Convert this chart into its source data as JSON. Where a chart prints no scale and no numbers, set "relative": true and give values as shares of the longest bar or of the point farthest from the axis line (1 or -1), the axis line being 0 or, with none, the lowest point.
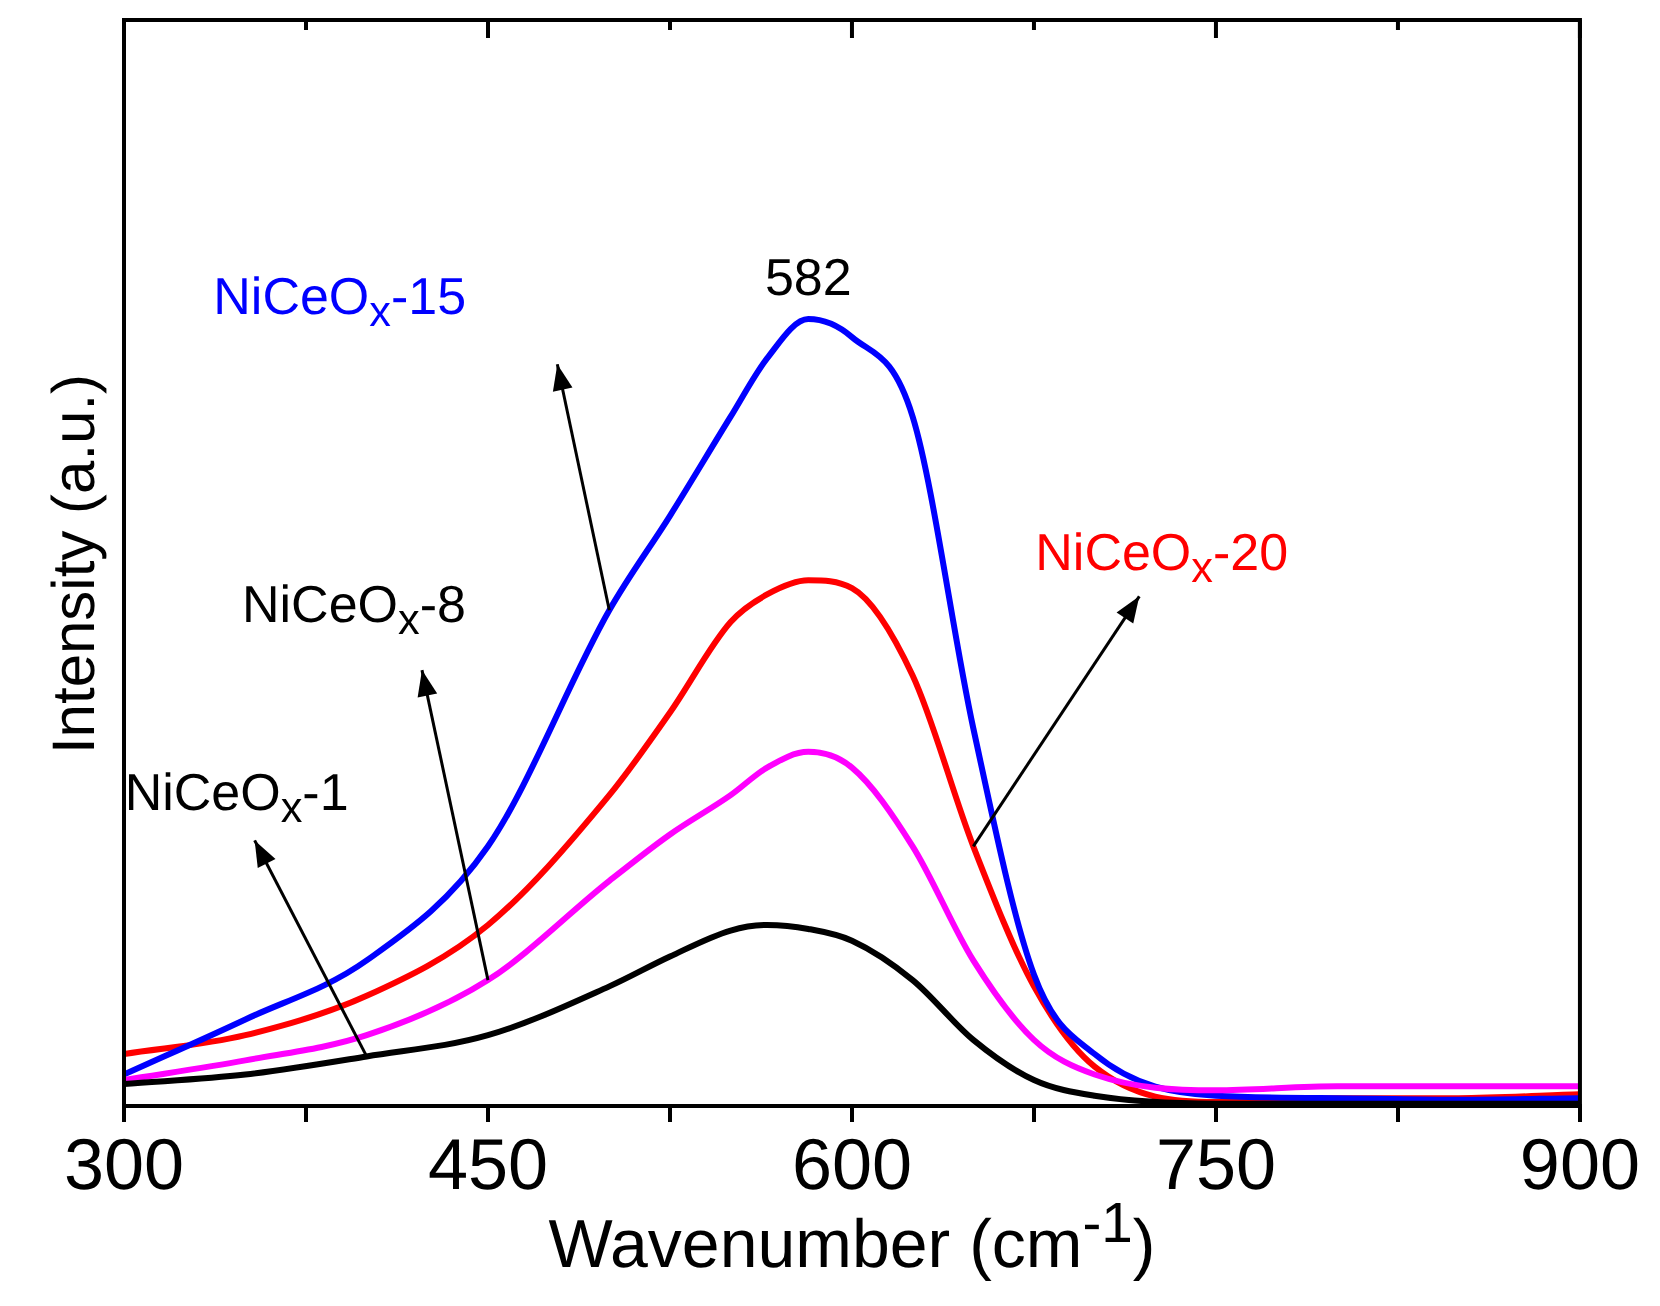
{
  "chart_data": {
    "type": "line",
    "xlabel": "Wavenumber (cm$^{-1}$)",
    "ylabel": "Intensity (a.u.)",
    "relative": true,
    "x": [
      300,
      350,
      400,
      450,
      500,
      525,
      550,
      565,
      582,
      600,
      625,
      650,
      675,
      700,
      750,
      800,
      850,
      900
    ],
    "xlim": [
      300,
      900
    ],
    "xticks": [
      300,
      {
        "value": 375,
        "label": null
      },
      450,
      {
        "value": 525,
        "label": null
      },
      600,
      {
        "value": 675,
        "label": null
      },
      750,
      {
        "value": 825,
        "label": null
      },
      900
    ],
    "grid": false,
    "legend": false,
    "marker": "none",
    "line_style": "solid",
    "series": [
      {
        "name": "NiCeO$_{x}$-1",
        "color": "#000000",
        "values": [
          0.028,
          0.04,
          0.063,
          0.09,
          0.152,
          0.19,
          0.223,
          0.23,
          0.225,
          0.21,
          0.16,
          0.084,
          0.033,
          0.013,
          0.003,
          0.003,
          0.003,
          0.003
        ]
      },
      {
        "name": "NiCeO$_{x}$-8",
        "color": "#ff00ff",
        "values": [
          0.033,
          0.058,
          0.09,
          0.16,
          0.286,
          0.345,
          0.395,
          0.43,
          0.45,
          0.43,
          0.33,
          0.185,
          0.084,
          0.04,
          0.02,
          0.025,
          0.025,
          0.025
        ]
      },
      {
        "name": "NiCeO$_{x}$-15",
        "color": "#0000ff",
        "values": [
          0.04,
          0.11,
          0.185,
          0.33,
          0.63,
          0.75,
          0.876,
          0.95,
          1,
          0.977,
          0.876,
          0.48,
          0.167,
          0.066,
          0.013,
          0.01,
          0.008,
          0.01
        ]
      },
      {
        "name": "NiCeO$_{x}$-20",
        "color": "#ff0000",
        "values": [
          0.066,
          0.09,
          0.14,
          0.23,
          0.395,
          0.5,
          0.615,
          0.65,
          0.668,
          0.658,
          0.547,
          0.33,
          0.152,
          0.05,
          0.005,
          0.01,
          0.01,
          0.015
        ]
      }
    ],
    "annotations": [
      {
        "text": "582",
        "x": 582,
        "y": 1
      }
    ]
  }
}
